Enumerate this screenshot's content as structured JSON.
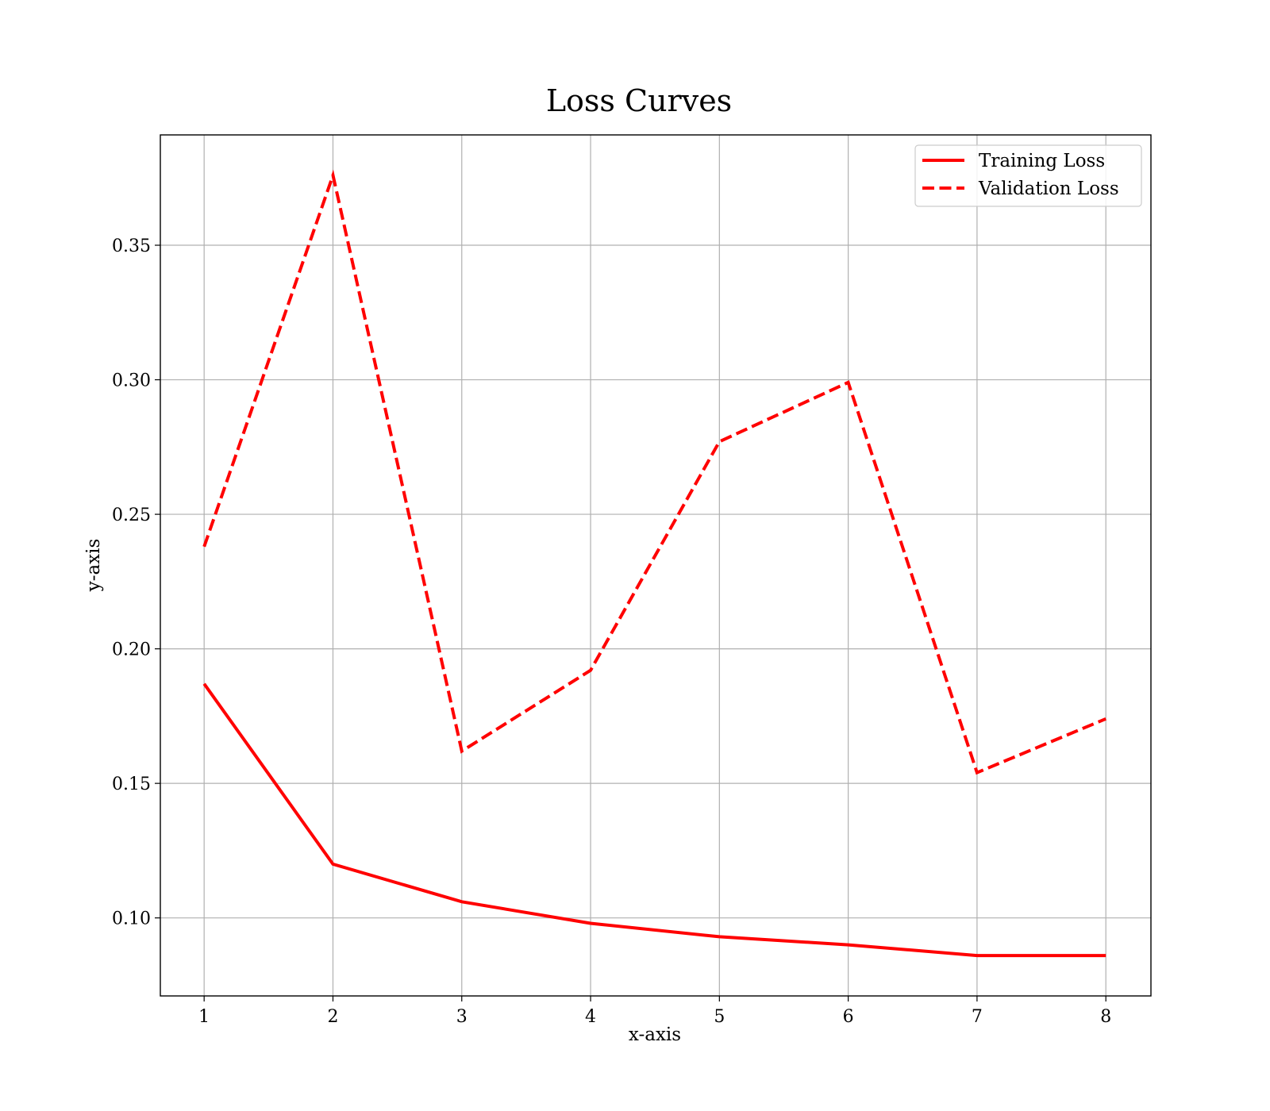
{
  "chart_data": {
    "type": "line",
    "title": "Loss Curves",
    "xlabel": "x-axis",
    "ylabel": "y-axis",
    "x": [
      1,
      2,
      3,
      4,
      5,
      6,
      7,
      8
    ],
    "xticks": [
      "1",
      "2",
      "3",
      "4",
      "5",
      "6",
      "7",
      "8"
    ],
    "yticks": [
      "0.10",
      "0.15",
      "0.20",
      "0.25",
      "0.30",
      "0.35"
    ],
    "xlim": [
      0.66,
      8.35
    ],
    "ylim": [
      0.071,
      0.391
    ],
    "grid": true,
    "legend_position": "top-right",
    "series": [
      {
        "name": "Training Loss",
        "style": "solid",
        "color": "#ff0000",
        "values": [
          0.187,
          0.12,
          0.106,
          0.098,
          0.093,
          0.09,
          0.086,
          0.086
        ]
      },
      {
        "name": "Validation Loss",
        "style": "dashed",
        "color": "#ff0000",
        "values": [
          0.238,
          0.376,
          0.162,
          0.192,
          0.277,
          0.299,
          0.154,
          0.174
        ]
      }
    ]
  }
}
